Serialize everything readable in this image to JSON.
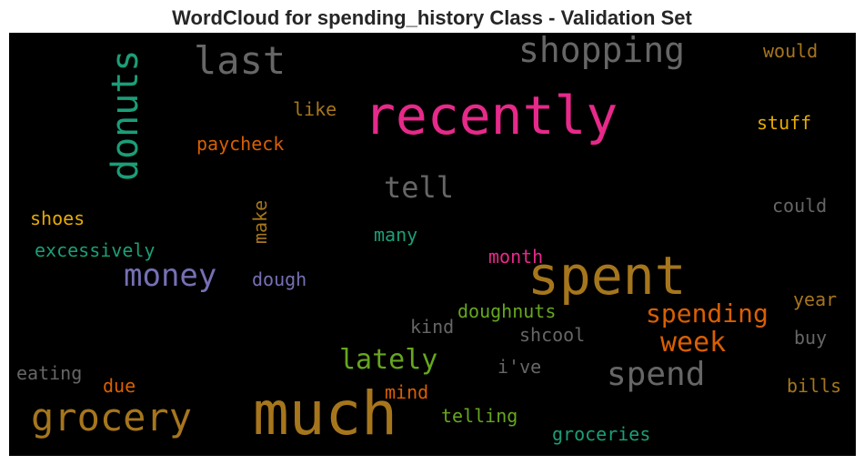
{
  "title": "WordCloud for spending_history Class - Validation Set",
  "colors": {
    "pink": "#e7298a",
    "goldbrown": "#a6761d",
    "gray": "#666666",
    "teal": "#1b9e77",
    "purple": "#7570b3",
    "orange": "#d95f02",
    "green": "#66a61e",
    "yellow": "#e6ab02"
  },
  "words": [
    {
      "text": "recently",
      "color": "pink"
    },
    {
      "text": "much",
      "color": "goldbrown"
    },
    {
      "text": "spent",
      "color": "goldbrown"
    },
    {
      "text": "grocery",
      "color": "goldbrown"
    },
    {
      "text": "donuts",
      "color": "teal"
    },
    {
      "text": "last",
      "color": "gray"
    },
    {
      "text": "shopping",
      "color": "gray"
    },
    {
      "text": "spend",
      "color": "gray"
    },
    {
      "text": "money",
      "color": "purple"
    },
    {
      "text": "week",
      "color": "orange"
    },
    {
      "text": "spending",
      "color": "orange"
    },
    {
      "text": "tell",
      "color": "gray"
    },
    {
      "text": "lately",
      "color": "green"
    },
    {
      "text": "paycheck",
      "color": "orange"
    },
    {
      "text": "like",
      "color": "goldbrown"
    },
    {
      "text": "stuff",
      "color": "yellow"
    },
    {
      "text": "would",
      "color": "goldbrown"
    },
    {
      "text": "could",
      "color": "gray"
    },
    {
      "text": "shoes",
      "color": "yellow"
    },
    {
      "text": "excessively",
      "color": "teal"
    },
    {
      "text": "make",
      "color": "goldbrown"
    },
    {
      "text": "many",
      "color": "teal"
    },
    {
      "text": "month",
      "color": "pink"
    },
    {
      "text": "dough",
      "color": "purple"
    },
    {
      "text": "doughnuts",
      "color": "green"
    },
    {
      "text": "kind",
      "color": "gray"
    },
    {
      "text": "shcool",
      "color": "gray"
    },
    {
      "text": "year",
      "color": "goldbrown"
    },
    {
      "text": "buy",
      "color": "gray"
    },
    {
      "text": "i've",
      "color": "gray"
    },
    {
      "text": "eating",
      "color": "gray"
    },
    {
      "text": "due",
      "color": "orange"
    },
    {
      "text": "mind",
      "color": "orange"
    },
    {
      "text": "bills",
      "color": "goldbrown"
    },
    {
      "text": "telling",
      "color": "green"
    },
    {
      "text": "groceries",
      "color": "teal"
    }
  ]
}
